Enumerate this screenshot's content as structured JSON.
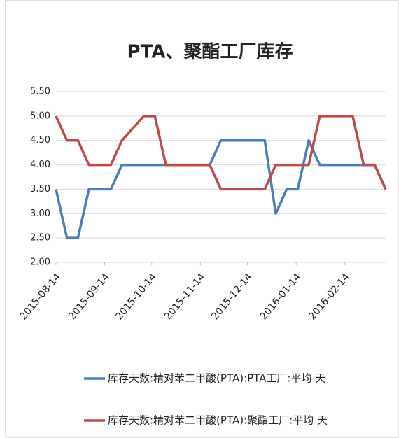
{
  "chart_data": {
    "type": "line",
    "title": "PTA、聚酯工厂库存",
    "x": [
      "2015-08-14",
      "2015-08-21",
      "2015-08-28",
      "2015-09-04",
      "2015-09-11",
      "2015-09-18",
      "2015-09-25",
      "2015-10-02",
      "2015-10-09",
      "2015-10-16",
      "2015-10-23",
      "2015-10-30",
      "2015-11-06",
      "2015-11-13",
      "2015-11-20",
      "2015-11-27",
      "2015-12-04",
      "2015-12-11",
      "2015-12-18",
      "2015-12-25",
      "2016-01-01",
      "2016-01-08",
      "2016-01-15",
      "2016-01-22",
      "2016-01-29",
      "2016-02-05",
      "2016-02-12",
      "2016-02-19",
      "2016-02-26",
      "2016-03-04",
      "2016-03-11"
    ],
    "xlim": [
      "2015-08-14",
      "2016-03-11"
    ],
    "xticks": [
      "2015-08-14",
      "2015-09-14",
      "2015-10-14",
      "2015-11-14",
      "2015-12-14",
      "2016-01-14",
      "2016-02-14"
    ],
    "series": [
      {
        "name": "库存天数:精对苯二甲酸(PTA):PTA工厂:平均 天",
        "color": "#4a7ebb",
        "values": [
          3.5,
          2.5,
          2.5,
          3.5,
          3.5,
          3.5,
          4.0,
          4.0,
          4.0,
          4.0,
          4.0,
          4.0,
          4.0,
          4.0,
          4.0,
          4.5,
          4.5,
          4.5,
          4.5,
          4.5,
          3.0,
          3.5,
          3.5,
          4.5,
          4.0,
          4.0,
          4.0,
          4.0,
          4.0,
          4.0,
          3.5
        ]
      },
      {
        "name": "库存天数:精对苯二甲酸(PTA):聚酯工厂:平均 天",
        "color": "#be4b48",
        "values": [
          5.0,
          4.5,
          4.5,
          4.0,
          4.0,
          4.0,
          4.5,
          4.75,
          5.0,
          5.0,
          4.0,
          4.0,
          4.0,
          4.0,
          4.0,
          3.5,
          3.5,
          3.5,
          3.5,
          3.5,
          4.0,
          4.0,
          4.0,
          4.0,
          5.0,
          5.0,
          5.0,
          5.0,
          4.0,
          4.0,
          3.5
        ]
      }
    ],
    "ylim": [
      2.0,
      5.5
    ],
    "yticks": [
      {
        "value": 2.0,
        "label": "2.00"
      },
      {
        "value": 2.5,
        "label": "2.50"
      },
      {
        "value": 3.0,
        "label": "3.00"
      },
      {
        "value": 3.5,
        "label": "3.50"
      },
      {
        "value": 4.0,
        "label": "4.00"
      },
      {
        "value": 4.5,
        "label": "4.50"
      },
      {
        "value": 5.0,
        "label": "5.00"
      },
      {
        "value": 5.5,
        "label": "5.50"
      }
    ],
    "grid": true,
    "legend": "bottom"
  }
}
